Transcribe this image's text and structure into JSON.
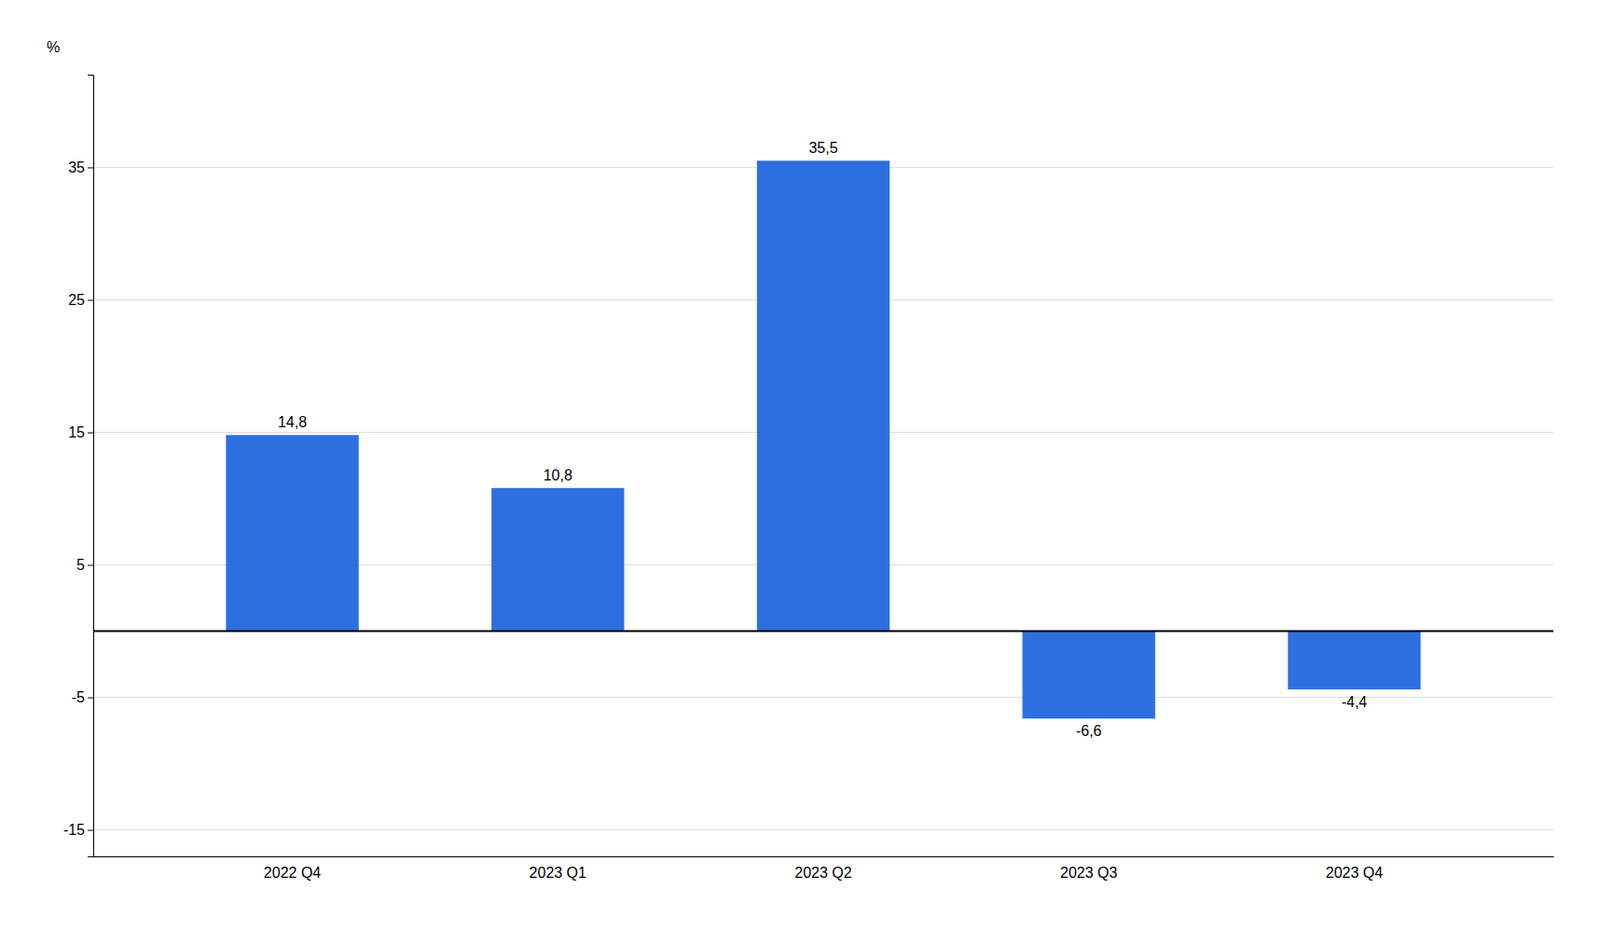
{
  "chart_data": {
    "type": "bar",
    "ylabel": "%",
    "categories": [
      "2022 Q4",
      "2023 Q1",
      "2023 Q2",
      "2023 Q3",
      "2023 Q4"
    ],
    "values": [
      14.8,
      10.8,
      35.5,
      -6.6,
      -4.4
    ],
    "value_labels": [
      "14,8",
      "10,8",
      "35,5",
      "-6,6",
      "-4,4"
    ],
    "color": "#2E6FE0",
    "ylim": [
      -17,
      42
    ],
    "yticks": [
      -15,
      -5,
      5,
      15,
      25,
      35
    ],
    "grid": true,
    "data_labels": true
  }
}
